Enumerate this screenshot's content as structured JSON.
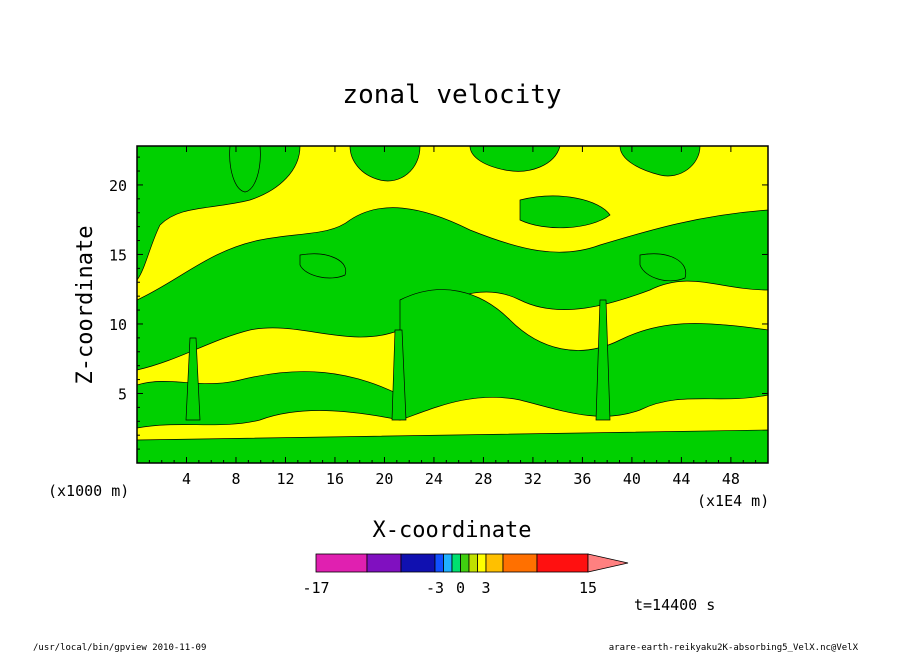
{
  "chart_data": {
    "type": "heatmap",
    "title": "zonal velocity",
    "xlabel": "X-coordinate",
    "ylabel": "Z-coordinate",
    "x_unit": "(x1E4 m)",
    "y_unit": "(x1000 m)",
    "xlim": [
      0,
      51
    ],
    "ylim": [
      0,
      22.8
    ],
    "x_ticks": [
      "4",
      "8",
      "12",
      "16",
      "20",
      "24",
      "28",
      "32",
      "36",
      "40",
      "44",
      "48"
    ],
    "x_tick_values": [
      4,
      8,
      12,
      16,
      20,
      24,
      28,
      32,
      36,
      40,
      44,
      48
    ],
    "y_ticks": [
      "5",
      "10",
      "15",
      "20"
    ],
    "y_tick_values": [
      5,
      10,
      15,
      20
    ],
    "colorbar": {
      "levels": [
        -17,
        -11,
        -7,
        -3,
        -2,
        -1,
        0,
        1,
        2,
        3,
        5,
        9,
        15
      ],
      "colors": [
        "#e020b0",
        "#8010c0",
        "#1010b0",
        "#1050ff",
        "#20b0ff",
        "#00e070",
        "#40d010",
        "#c0e000",
        "#ffff00",
        "#ffc000",
        "#ff7000",
        "#ff1010",
        "#ff8080"
      ],
      "tick_labels": [
        "-17",
        "-3",
        "0",
        "3",
        "15"
      ],
      "tick_values": [
        -17,
        -3,
        0,
        3,
        15
      ]
    },
    "dominant_fields": [
      {
        "range": "0 to 1",
        "color": "#00d000",
        "description": "green"
      },
      {
        "range": "1 to 2",
        "color": "#ffff00",
        "description": "yellow"
      }
    ],
    "time_label": "t=14400 s"
  },
  "footer": {
    "left": "/usr/local/bin/gpview  2010-11-09",
    "right": "arare-earth-reikyaku2K-absorbing5_VelX.nc@VelX"
  },
  "colors": {
    "green": "#00d000",
    "yellow": "#ffff00",
    "frame": "#000000"
  }
}
